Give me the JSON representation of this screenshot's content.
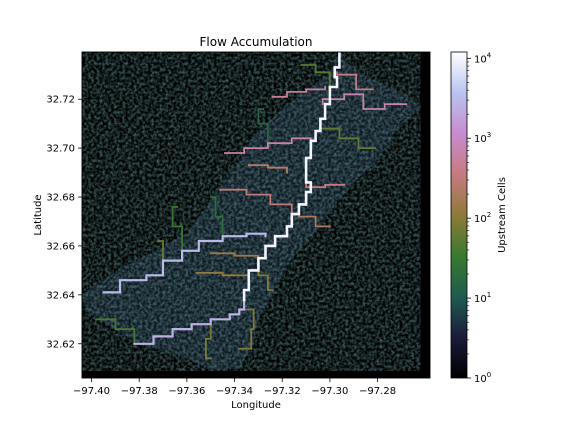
{
  "chart_data": {
    "type": "heatmap",
    "title": "Flow Accumulation",
    "xlabel": "Longitude",
    "ylabel": "Latitude",
    "xlim": [
      -97.404,
      -97.258
    ],
    "ylim": [
      32.606,
      32.7393
    ],
    "xticks": [
      {
        "value": -97.4,
        "label": "−97.40"
      },
      {
        "value": -97.38,
        "label": "−97.38"
      },
      {
        "value": -97.36,
        "label": "−97.36"
      },
      {
        "value": -97.34,
        "label": "−97.34"
      },
      {
        "value": -97.32,
        "label": "−97.32"
      },
      {
        "value": -97.3,
        "label": "−97.30"
      },
      {
        "value": -97.28,
        "label": "−97.28"
      }
    ],
    "yticks": [
      {
        "value": 32.62,
        "label": "32.62"
      },
      {
        "value": 32.64,
        "label": "32.64"
      },
      {
        "value": 32.66,
        "label": "32.66"
      },
      {
        "value": 32.68,
        "label": "32.68"
      },
      {
        "value": 32.7,
        "label": "32.70"
      },
      {
        "value": 32.72,
        "label": "32.72"
      }
    ],
    "colorbar": {
      "label": "Upstream Cells",
      "scale": "log",
      "range": [
        1,
        12000
      ],
      "ticks": [
        {
          "value": 1,
          "base": "10",
          "exp": "0"
        },
        {
          "value": 10,
          "base": "10",
          "exp": "1"
        },
        {
          "value": 100,
          "base": "10",
          "exp": "2"
        },
        {
          "value": 1000,
          "base": "10",
          "exp": "3"
        },
        {
          "value": 10000,
          "base": "10",
          "exp": "4"
        }
      ],
      "colormap": [
        "#000000",
        "#1b1b3c",
        "#1e5c50",
        "#3a7a2e",
        "#8e7a3a",
        "#c67a80",
        "#c88bd0",
        "#b8c4f0",
        "#ffffff"
      ]
    },
    "background": "#000000",
    "watershed_outline": [
      [
        -97.404,
        32.64
      ],
      [
        -97.398,
        32.645
      ],
      [
        -97.385,
        32.652
      ],
      [
        -97.37,
        32.66
      ],
      [
        -97.36,
        32.665
      ],
      [
        -97.352,
        32.676
      ],
      [
        -97.345,
        32.686
      ],
      [
        -97.338,
        32.695
      ],
      [
        -97.332,
        32.705
      ],
      [
        -97.322,
        32.714
      ],
      [
        -97.312,
        32.722
      ],
      [
        -97.3,
        32.731
      ],
      [
        -97.296,
        32.7393
      ],
      [
        -97.292,
        32.734
      ],
      [
        -97.28,
        32.727
      ],
      [
        -97.268,
        32.722
      ],
      [
        -97.262,
        32.716
      ],
      [
        -97.272,
        32.708
      ],
      [
        -97.276,
        32.7
      ],
      [
        -97.282,
        32.693
      ],
      [
        -97.29,
        32.686
      ],
      [
        -97.3,
        32.674
      ],
      [
        -97.308,
        32.664
      ],
      [
        -97.318,
        32.652
      ],
      [
        -97.324,
        32.64
      ],
      [
        -97.33,
        32.63
      ],
      [
        -97.333,
        32.618
      ],
      [
        -97.338,
        32.61
      ],
      [
        -97.35,
        32.609
      ],
      [
        -97.36,
        32.614
      ],
      [
        -97.37,
        32.617
      ],
      [
        -97.38,
        32.62
      ],
      [
        -97.392,
        32.627
      ],
      [
        -97.402,
        32.633
      ]
    ],
    "main_channel": {
      "accumulation": 10000,
      "points": [
        [
          -97.296,
          32.7393
        ],
        [
          -97.298,
          32.733
        ],
        [
          -97.297,
          32.729
        ],
        [
          -97.3,
          32.725
        ],
        [
          -97.302,
          32.718
        ],
        [
          -97.304,
          32.712
        ],
        [
          -97.306,
          32.707
        ],
        [
          -97.308,
          32.703
        ],
        [
          -97.31,
          32.696
        ],
        [
          -97.31,
          32.69
        ],
        [
          -97.308,
          32.686
        ],
        [
          -97.31,
          32.682
        ],
        [
          -97.313,
          32.677
        ],
        [
          -97.316,
          32.673
        ],
        [
          -97.318,
          32.668
        ],
        [
          -97.323,
          32.664
        ],
        [
          -97.327,
          32.66
        ],
        [
          -97.33,
          32.655
        ],
        [
          -97.334,
          32.65
        ],
        [
          -97.334,
          32.646
        ],
        [
          -97.336,
          32.642
        ],
        [
          -97.336,
          32.638
        ]
      ]
    },
    "tributaries": [
      {
        "accumulation": 3000,
        "points": [
          [
            -97.327,
            32.664
          ],
          [
            -97.335,
            32.665
          ],
          [
            -97.345,
            32.664
          ],
          [
            -97.355,
            32.662
          ],
          [
            -97.362,
            32.658
          ],
          [
            -97.37,
            32.654
          ],
          [
            -97.377,
            32.648
          ],
          [
            -97.388,
            32.646
          ],
          [
            -97.395,
            32.641
          ]
        ]
      },
      {
        "accumulation": 2500,
        "points": [
          [
            -97.336,
            32.638
          ],
          [
            -97.338,
            32.634
          ],
          [
            -97.342,
            32.632
          ],
          [
            -97.35,
            32.63
          ],
          [
            -97.358,
            32.628
          ],
          [
            -97.366,
            32.626
          ],
          [
            -97.374,
            32.623
          ],
          [
            -97.382,
            32.62
          ]
        ]
      },
      {
        "accumulation": 600,
        "points": [
          [
            -97.308,
            32.703
          ],
          [
            -97.316,
            32.704
          ],
          [
            -97.326,
            32.702
          ],
          [
            -97.336,
            32.7
          ],
          [
            -97.344,
            32.698
          ]
        ]
      },
      {
        "accumulation": 700,
        "points": [
          [
            -97.303,
            32.718
          ],
          [
            -97.294,
            32.72
          ],
          [
            -97.286,
            32.722
          ],
          [
            -97.277,
            32.716
          ],
          [
            -97.268,
            32.718
          ]
        ]
      },
      {
        "accumulation": 500,
        "points": [
          [
            -97.302,
            32.725
          ],
          [
            -97.31,
            32.724
          ],
          [
            -97.318,
            32.723
          ],
          [
            -97.324,
            32.721
          ]
        ]
      },
      {
        "accumulation": 400,
        "points": [
          [
            -97.297,
            32.731
          ],
          [
            -97.289,
            32.73
          ],
          [
            -97.282,
            32.724
          ]
        ]
      },
      {
        "accumulation": 350,
        "points": [
          [
            -97.31,
            32.686
          ],
          [
            -97.302,
            32.684
          ],
          [
            -97.294,
            32.685
          ]
        ]
      },
      {
        "accumulation": 300,
        "points": [
          [
            -97.316,
            32.673
          ],
          [
            -97.325,
            32.677
          ],
          [
            -97.335,
            32.681
          ],
          [
            -97.346,
            32.683
          ]
        ]
      },
      {
        "accumulation": 250,
        "points": [
          [
            -97.318,
            32.69
          ],
          [
            -97.326,
            32.692
          ],
          [
            -97.334,
            32.693
          ]
        ]
      },
      {
        "accumulation": 200,
        "points": [
          [
            -97.313,
            32.677
          ],
          [
            -97.306,
            32.672
          ],
          [
            -97.3,
            32.668
          ]
        ]
      },
      {
        "accumulation": 150,
        "points": [
          [
            -97.33,
            32.655
          ],
          [
            -97.34,
            32.656
          ],
          [
            -97.35,
            32.657
          ]
        ]
      },
      {
        "accumulation": 120,
        "points": [
          [
            -97.334,
            32.646
          ],
          [
            -97.345,
            32.648
          ],
          [
            -97.356,
            32.649
          ]
        ]
      },
      {
        "accumulation": 100,
        "points": [
          [
            -97.33,
            32.655
          ],
          [
            -97.326,
            32.648
          ],
          [
            -97.324,
            32.642
          ]
        ]
      },
      {
        "accumulation": 90,
        "points": [
          [
            -97.336,
            32.642
          ],
          [
            -97.332,
            32.634
          ],
          [
            -97.333,
            32.626
          ],
          [
            -97.338,
            32.618
          ]
        ]
      },
      {
        "accumulation": 80,
        "points": [
          [
            -97.35,
            32.63
          ],
          [
            -97.352,
            32.622
          ],
          [
            -97.35,
            32.614
          ]
        ]
      },
      {
        "accumulation": 70,
        "points": [
          [
            -97.37,
            32.654
          ],
          [
            -97.372,
            32.662
          ]
        ]
      },
      {
        "accumulation": 60,
        "points": [
          [
            -97.304,
            32.712
          ],
          [
            -97.296,
            32.708
          ],
          [
            -97.288,
            32.704
          ],
          [
            -97.281,
            32.7
          ]
        ]
      },
      {
        "accumulation": 50,
        "points": [
          [
            -97.3,
            32.725
          ],
          [
            -97.306,
            32.731
          ],
          [
            -97.312,
            32.734
          ]
        ]
      },
      {
        "accumulation": 40,
        "points": [
          [
            -97.382,
            32.62
          ],
          [
            -97.39,
            32.626
          ],
          [
            -97.398,
            32.63
          ]
        ]
      },
      {
        "accumulation": 30,
        "points": [
          [
            -97.362,
            32.658
          ],
          [
            -97.366,
            32.668
          ],
          [
            -97.364,
            32.676
          ]
        ]
      },
      {
        "accumulation": 20,
        "points": [
          [
            -97.345,
            32.664
          ],
          [
            -97.348,
            32.672
          ],
          [
            -97.35,
            32.68
          ]
        ]
      },
      {
        "accumulation": 15,
        "points": [
          [
            -97.326,
            32.702
          ],
          [
            -97.33,
            32.71
          ],
          [
            -97.328,
            32.716
          ]
        ]
      }
    ]
  }
}
